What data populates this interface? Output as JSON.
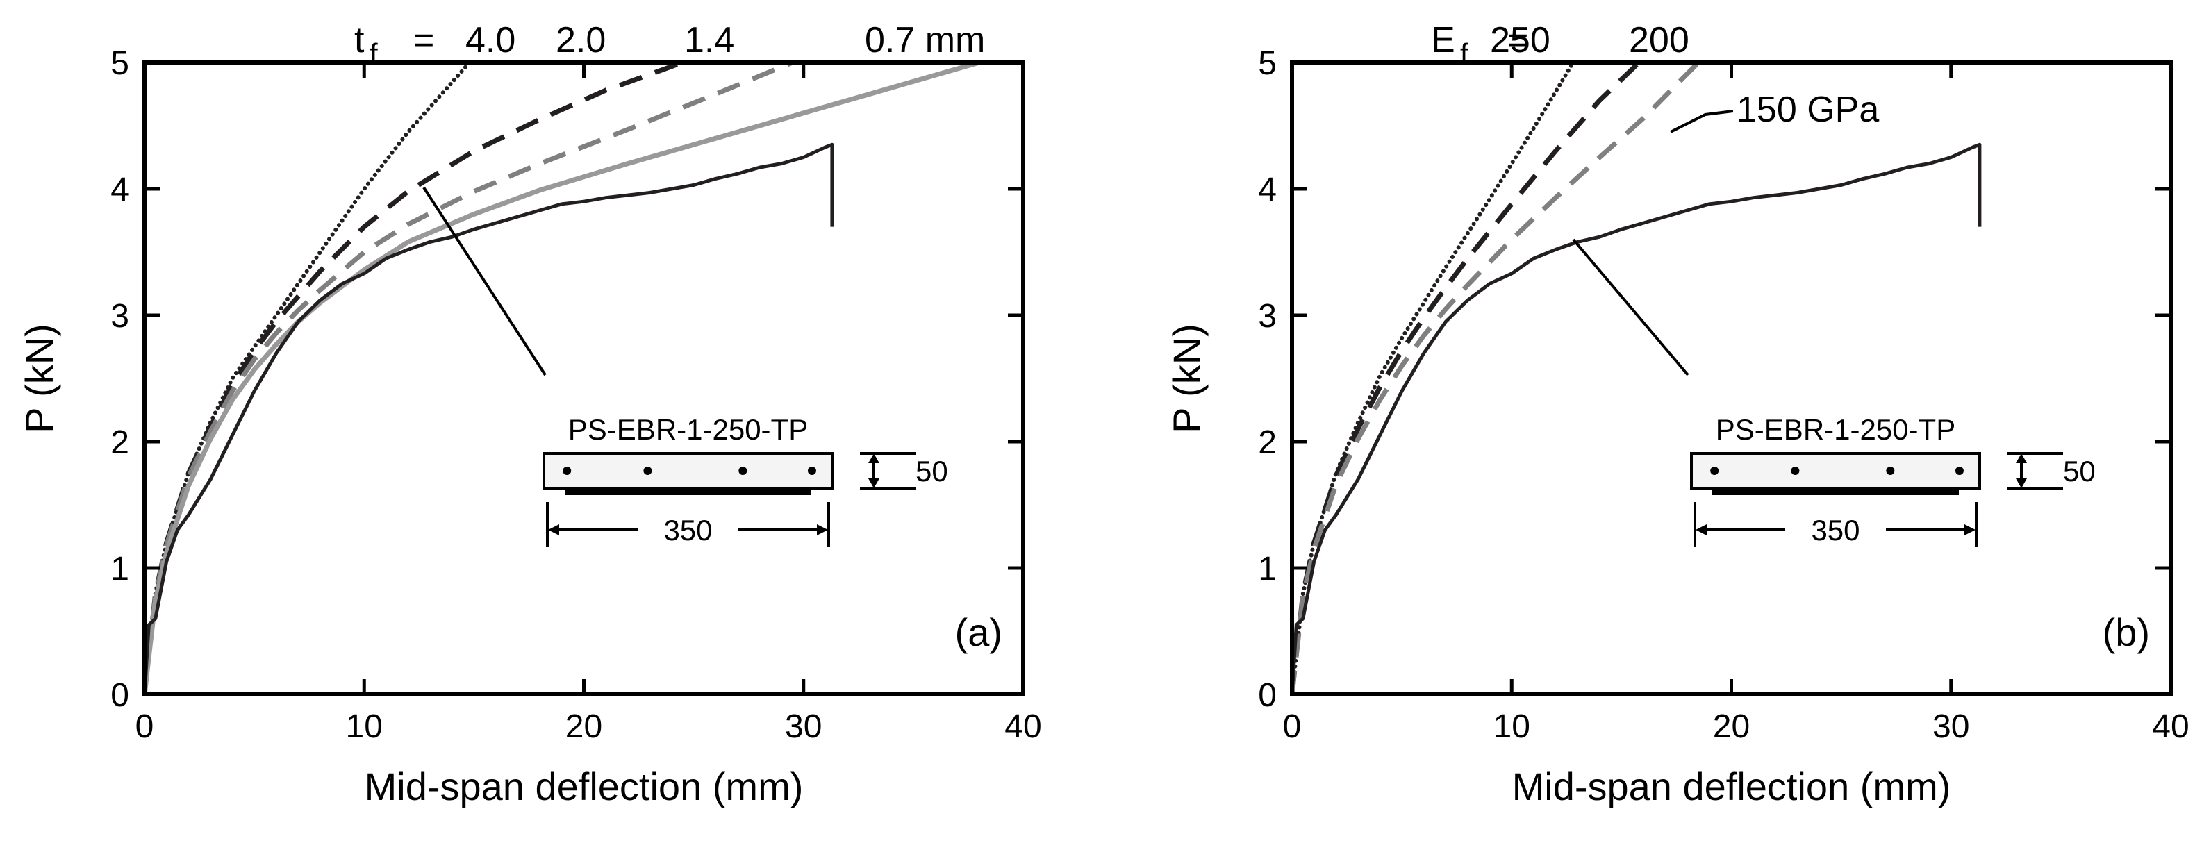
{
  "chart_data": [
    {
      "type": "line",
      "panel_label": "(a)",
      "xlabel": "Mid-span deflection (mm)",
      "ylabel": "P (kN)",
      "xlim": [
        0,
        40
      ],
      "ylim": [
        0,
        5
      ],
      "xticks": [
        0,
        10,
        20,
        30,
        40
      ],
      "yticks": [
        0,
        1,
        2,
        3,
        4,
        5
      ],
      "param_symbol": "t",
      "param_subscript": "f",
      "param_equals": "=",
      "specimen_label": "PS-EBR-1-250-TP",
      "dim_height": "50",
      "dim_length": "350",
      "series": [
        {
          "name": "t_f = 4.0",
          "label": "4.0",
          "style": "dotted",
          "color": "#231f20",
          "x": [
            0,
            0.5,
            1,
            2,
            3,
            4,
            5,
            6,
            7,
            8,
            10,
            12,
            14.8
          ],
          "y": [
            0,
            0.8,
            1.2,
            1.75,
            2.15,
            2.5,
            2.75,
            3.0,
            3.25,
            3.5,
            4.0,
            4.45,
            5.0
          ]
        },
        {
          "name": "t_f = 2.0",
          "label": "2.0",
          "style": "dashed",
          "color": "#231f20",
          "x": [
            0,
            0.5,
            1,
            2,
            3,
            4,
            5,
            6,
            7,
            8,
            10,
            12,
            15,
            18,
            21,
            24.5
          ],
          "y": [
            0,
            0.8,
            1.2,
            1.75,
            2.12,
            2.45,
            2.72,
            2.95,
            3.15,
            3.35,
            3.7,
            3.98,
            4.3,
            4.55,
            4.78,
            5.0
          ]
        },
        {
          "name": "t_f = 1.4",
          "label": "1.4",
          "style": "dashed",
          "color": "#808080",
          "x": [
            0,
            0.5,
            1,
            2,
            3,
            4,
            5,
            6,
            7,
            8,
            10,
            12,
            15,
            18,
            22,
            26,
            29.5
          ],
          "y": [
            0,
            0.78,
            1.18,
            1.72,
            2.08,
            2.4,
            2.65,
            2.86,
            3.04,
            3.2,
            3.5,
            3.72,
            3.98,
            4.2,
            4.47,
            4.75,
            5.0
          ]
        },
        {
          "name": "t_f = 0.7 mm",
          "label": "0.7 mm",
          "style": "solid",
          "color": "#999999",
          "x": [
            0,
            0.5,
            1,
            2,
            3,
            4,
            5,
            6,
            7,
            8,
            10,
            12,
            15,
            18,
            22,
            26,
            30,
            34,
            38
          ],
          "y": [
            0,
            0.75,
            1.12,
            1.65,
            2.02,
            2.33,
            2.57,
            2.77,
            2.95,
            3.1,
            3.36,
            3.58,
            3.8,
            3.99,
            4.2,
            4.4,
            4.6,
            4.8,
            5.0
          ]
        },
        {
          "name": "PS-EBR-1-250-TP",
          "label": "PS-EBR-1-250-TP",
          "style": "solid",
          "color": "#231f20",
          "x": [
            0,
            0.2,
            0.5,
            1,
            1.5,
            2,
            3,
            4,
            5,
            6,
            7,
            8,
            9,
            10,
            11,
            12,
            13,
            14,
            15,
            16,
            17,
            18,
            19,
            20,
            21,
            22,
            23,
            24,
            25,
            26,
            27,
            28,
            29,
            30,
            31,
            31.3,
            31.3
          ],
          "y": [
            0,
            0.55,
            0.6,
            1.05,
            1.3,
            1.42,
            1.7,
            2.05,
            2.4,
            2.7,
            2.95,
            3.12,
            3.25,
            3.33,
            3.45,
            3.52,
            3.58,
            3.62,
            3.68,
            3.73,
            3.78,
            3.83,
            3.88,
            3.9,
            3.93,
            3.95,
            3.97,
            4.0,
            4.03,
            4.08,
            4.12,
            4.17,
            4.2,
            4.25,
            4.33,
            4.35,
            3.7
          ]
        }
      ]
    },
    {
      "type": "line",
      "panel_label": "(b)",
      "xlabel": "Mid-span deflection (mm)",
      "ylabel": "P (kN)",
      "xlim": [
        0,
        40
      ],
      "ylim": [
        0,
        5
      ],
      "xticks": [
        0,
        10,
        20,
        30,
        40
      ],
      "yticks": [
        0,
        1,
        2,
        3,
        4,
        5
      ],
      "param_symbol": "E",
      "param_subscript": "f",
      "param_equals": "=",
      "specimen_label": "PS-EBR-1-250-TP",
      "dim_height": "50",
      "dim_length": "350",
      "series": [
        {
          "name": "E_f = 250",
          "label": "250",
          "style": "dotted",
          "color": "#231f20",
          "x": [
            0,
            0.5,
            1,
            2,
            3,
            4,
            5,
            6,
            7,
            8,
            9,
            10,
            11,
            12.8
          ],
          "y": [
            0,
            0.8,
            1.2,
            1.75,
            2.15,
            2.52,
            2.82,
            3.1,
            3.38,
            3.65,
            3.92,
            4.2,
            4.48,
            5.0
          ]
        },
        {
          "name": "E_f = 200",
          "label": "200",
          "style": "dashed",
          "color": "#231f20",
          "x": [
            0,
            0.5,
            1,
            2,
            3,
            4,
            5,
            6,
            7,
            8,
            10,
            12,
            14,
            15.8
          ],
          "y": [
            0,
            0.8,
            1.2,
            1.73,
            2.1,
            2.43,
            2.72,
            2.98,
            3.22,
            3.45,
            3.88,
            4.3,
            4.7,
            5.0
          ]
        },
        {
          "name": "E_f = 150 GPa",
          "label": "150 GPa",
          "style": "dashed",
          "color": "#808080",
          "x": [
            0,
            0.5,
            1,
            2,
            3,
            4,
            5,
            6,
            7,
            8,
            10,
            12,
            14,
            16,
            18.5
          ],
          "y": [
            0,
            0.78,
            1.15,
            1.66,
            2.02,
            2.33,
            2.6,
            2.84,
            3.05,
            3.24,
            3.6,
            3.93,
            4.25,
            4.56,
            5.0
          ]
        },
        {
          "name": "PS-EBR-1-250-TP",
          "label": "PS-EBR-1-250-TP",
          "style": "solid",
          "color": "#231f20",
          "x": [
            0,
            0.2,
            0.5,
            1,
            1.5,
            2,
            3,
            4,
            5,
            6,
            7,
            8,
            9,
            10,
            11,
            12,
            13,
            14,
            15,
            16,
            17,
            18,
            19,
            20,
            21,
            22,
            23,
            24,
            25,
            26,
            27,
            28,
            29,
            30,
            31,
            31.3,
            31.3
          ],
          "y": [
            0,
            0.55,
            0.6,
            1.05,
            1.3,
            1.42,
            1.7,
            2.05,
            2.4,
            2.7,
            2.95,
            3.12,
            3.25,
            3.33,
            3.45,
            3.52,
            3.58,
            3.62,
            3.68,
            3.73,
            3.78,
            3.83,
            3.88,
            3.9,
            3.93,
            3.95,
            3.97,
            4.0,
            4.03,
            4.08,
            4.12,
            4.17,
            4.2,
            4.25,
            4.33,
            4.35,
            3.7
          ]
        }
      ]
    }
  ]
}
